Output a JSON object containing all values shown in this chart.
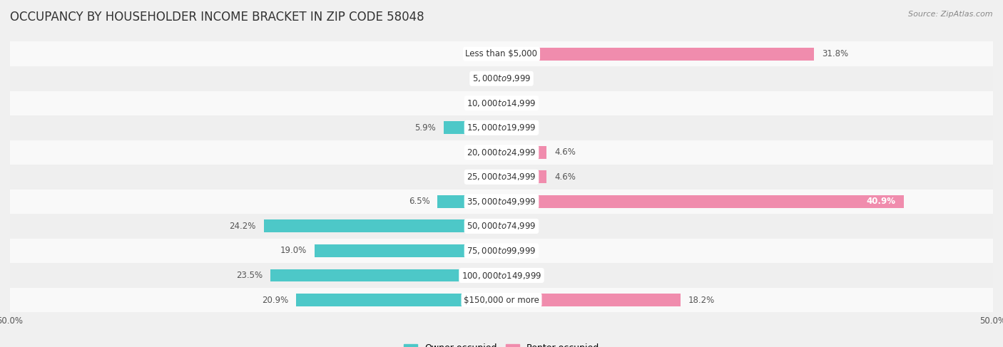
{
  "title": "OCCUPANCY BY HOUSEHOLDER INCOME BRACKET IN ZIP CODE 58048",
  "source": "Source: ZipAtlas.com",
  "categories": [
    "Less than $5,000",
    "$5,000 to $9,999",
    "$10,000 to $14,999",
    "$15,000 to $19,999",
    "$20,000 to $24,999",
    "$25,000 to $34,999",
    "$35,000 to $49,999",
    "$50,000 to $74,999",
    "$75,000 to $99,999",
    "$100,000 to $149,999",
    "$150,000 or more"
  ],
  "owner_values": [
    0.0,
    0.0,
    0.0,
    5.9,
    0.0,
    0.0,
    6.5,
    24.2,
    19.0,
    23.5,
    20.9
  ],
  "renter_values": [
    31.8,
    0.0,
    0.0,
    0.0,
    4.6,
    4.6,
    40.9,
    0.0,
    0.0,
    0.0,
    18.2
  ],
  "owner_color": "#4dc8c8",
  "renter_color": "#f08cad",
  "bar_height": 0.52,
  "xlim": 50.0,
  "background_color": "#f0f0f0",
  "row_colors": [
    "#f9f9f9",
    "#efefef"
  ],
  "title_fontsize": 12,
  "label_fontsize": 8.5,
  "category_fontsize": 8.5,
  "legend_fontsize": 9,
  "source_fontsize": 8
}
